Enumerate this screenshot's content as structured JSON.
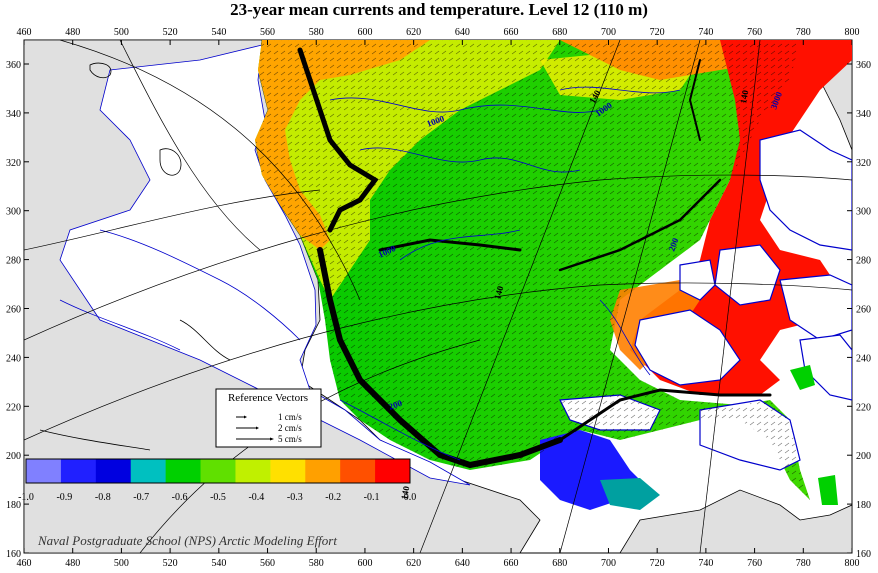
{
  "title": "23-year mean currents and temperature. Level  12 (110 m)",
  "credit": "Naval Postgraduate School (NPS) Arctic Modeling Effort",
  "x_ticks": [
    "460",
    "480",
    "500",
    "520",
    "540",
    "560",
    "580",
    "600",
    "620",
    "640",
    "660",
    "680",
    "700",
    "720",
    "740",
    "760",
    "780",
    "800"
  ],
  "y_ticks": [
    "160",
    "180",
    "200",
    "220",
    "240",
    "260",
    "280",
    "300",
    "320",
    "340",
    "360"
  ],
  "colorbar": {
    "labels": [
      "-1.0",
      "-0.9",
      "-0.8",
      "-0.7",
      "-0.6",
      "-0.5",
      "-0.4",
      "-0.3",
      "-0.2",
      "-0.1",
      "0.0"
    ],
    "colors": [
      "#8080ff",
      "#2020ff",
      "#0000e0",
      "#00c0c0",
      "#00d000",
      "#60e000",
      "#c0f000",
      "#ffe000",
      "#ffa000",
      "#ff5000",
      "#ff0000"
    ]
  },
  "legend": {
    "title": "Reference Vectors",
    "items": [
      "1 cm/s",
      "2 cm/s",
      "5 cm/s"
    ]
  },
  "contour_labels": [
    "1000",
    "1000",
    "140",
    "140",
    "140",
    "140",
    "200",
    "3000",
    "1000",
    "200"
  ],
  "colors": {
    "land": "#e0e0e0",
    "ocean_white": "#ffffff",
    "contour": "#0000cc"
  }
}
